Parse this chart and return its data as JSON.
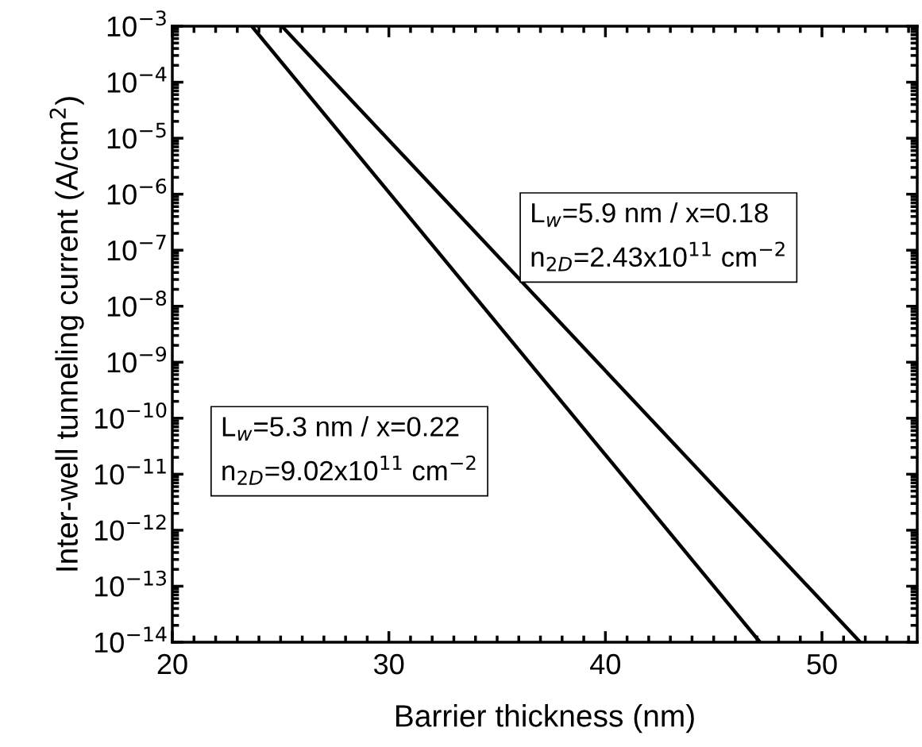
{
  "chart_data": {
    "type": "line",
    "xlabel": "Barrier thickness (nm)",
    "ylabel": "Inter-well tunneling current (A/cm$^{2}$)",
    "log": "y",
    "xlim": [
      20,
      54.4
    ],
    "xticks": [
      20,
      30,
      40,
      50
    ],
    "ylim": [
      1e-14,
      0.001
    ],
    "yticks": [
      {
        "value": 1e-14,
        "label": "10$^{−14}$"
      },
      {
        "value": 1e-13,
        "label": "10$^{−13}$"
      },
      {
        "value": 1e-12,
        "label": "10$^{−12}$"
      },
      {
        "value": 1e-11,
        "label": "10$^{−11}$"
      },
      {
        "value": 1e-10,
        "label": "10$^{−10}$"
      },
      {
        "value": 1e-09,
        "label": "10$^{−9}$"
      },
      {
        "value": 1e-08,
        "label": "10$^{−8}$"
      },
      {
        "value": 1e-07,
        "label": "10$^{−7}$"
      },
      {
        "value": 1e-06,
        "label": "10$^{−6}$"
      },
      {
        "value": 1e-05,
        "label": "10$^{−5}$"
      },
      {
        "value": 0.0001,
        "label": "10$^{−4}$"
      },
      {
        "value": 0.001,
        "label": "10$^{−3}$"
      }
    ],
    "marker": "none",
    "line_style": "solid",
    "series": [
      {
        "color": "#000000",
        "x": [
          23.67,
          47.14
        ],
        "values": [
          0.001,
          1e-14
        ]
      },
      {
        "color": "#000000",
        "x": [
          25.06,
          51.77
        ],
        "values": [
          0.001,
          1e-14
        ]
      }
    ],
    "annotations": [
      "L$_{w}$=5.3 nm / x=0.22\nn$_{2D}$=9.02x10$^{11}$ cm$^{−2}$",
      "L$_{w}$=5.9 nm / x=0.18\nn$_{2D}$=2.43x10$^{11}$ cm$^{−2}$"
    ]
  }
}
